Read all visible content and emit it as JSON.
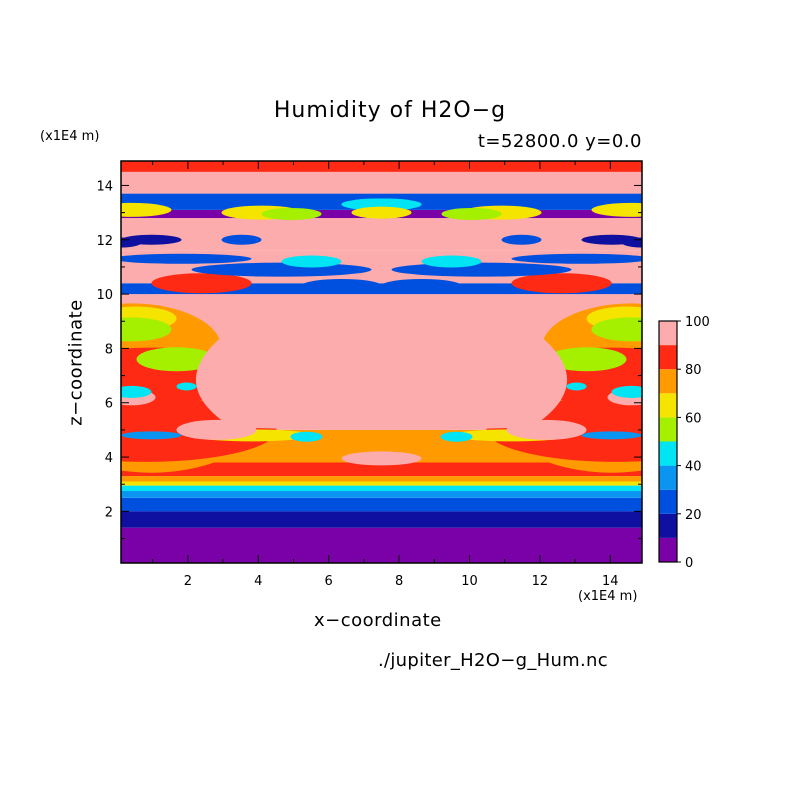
{
  "chart_data": {
    "type": "heatmap",
    "title": "Humidity of H2O−g",
    "subtitle": "t=52800.0 y=0.0",
    "xlabel": "x−coordinate",
    "ylabel": "z−coordinate",
    "x_unit": "(x1E4 m)",
    "y_unit": "(x1E4 m)",
    "xlim": [
      0.1,
      14.9
    ],
    "ylim": [
      0.1,
      14.9
    ],
    "x_ticks": [
      "2",
      "4",
      "6",
      "8",
      "10",
      "12",
      "14"
    ],
    "y_ticks": [
      "2",
      "4",
      "6",
      "8",
      "10",
      "12",
      "14"
    ],
    "colorbar": {
      "range": [
        0,
        100
      ],
      "ticks": [
        "0",
        "20",
        "40",
        "60",
        "80",
        "100"
      ],
      "levels": [
        {
          "from": 0,
          "to": 10,
          "color": "#7a00a8"
        },
        {
          "from": 10,
          "to": 20,
          "color": "#1010a0"
        },
        {
          "from": 20,
          "to": 30,
          "color": "#0050e0"
        },
        {
          "from": 30,
          "to": 40,
          "color": "#0a96f0"
        },
        {
          "from": 40,
          "to": 50,
          "color": "#00e4f4"
        },
        {
          "from": 50,
          "to": 60,
          "color": "#a4f000"
        },
        {
          "from": 60,
          "to": 70,
          "color": "#f4e400"
        },
        {
          "from": 70,
          "to": 80,
          "color": "#ff9a00"
        },
        {
          "from": 80,
          "to": 90,
          "color": "#ff2a14"
        },
        {
          "from": 90,
          "to": 100,
          "color": "#fcacac"
        }
      ]
    },
    "layers_by_height": [
      {
        "z_from": 0.1,
        "z_to": 1.4,
        "value": 5
      },
      {
        "z_from": 1.4,
        "z_to": 2.0,
        "value": 15
      },
      {
        "z_from": 2.0,
        "z_to": 2.5,
        "value": 25
      },
      {
        "z_from": 2.5,
        "z_to": 2.75,
        "value": 35
      },
      {
        "z_from": 2.75,
        "z_to": 2.95,
        "value": 45
      },
      {
        "z_from": 2.95,
        "z_to": 3.1,
        "value": 65
      },
      {
        "z_from": 3.1,
        "z_to": 3.3,
        "value": 75
      },
      {
        "z_from": 3.3,
        "z_to": 3.8,
        "value": 85
      },
      {
        "z_from": 3.8,
        "z_to": 5.0,
        "value": 75
      },
      {
        "z_from": 5.0,
        "z_to": 8.3,
        "value": 95
      },
      {
        "z_from": 8.3,
        "z_to": 10.0,
        "value": 95
      },
      {
        "z_from": 10.0,
        "z_to": 10.4,
        "value": 25
      },
      {
        "z_from": 10.4,
        "z_to": 11.6,
        "value": 95
      },
      {
        "z_from": 11.6,
        "z_to": 12.8,
        "value": 95
      },
      {
        "z_from": 12.8,
        "z_to": 13.1,
        "value": 5
      },
      {
        "z_from": 13.1,
        "z_to": 13.7,
        "value": 25
      },
      {
        "z_from": 13.7,
        "z_to": 14.5,
        "value": 95
      },
      {
        "z_from": 14.5,
        "z_to": 14.9,
        "value": 85
      }
    ]
  },
  "labels": {
    "title": "Humidity of H2O−g",
    "subtitle": "t=52800.0 y=0.0",
    "y_unit": "(x1E4 m)",
    "x_unit": "(x1E4 m)",
    "xlabel": "x−coordinate",
    "ylabel": "z−coordinate",
    "source": "./jupiter_H2O−g_Hum.nc"
  }
}
